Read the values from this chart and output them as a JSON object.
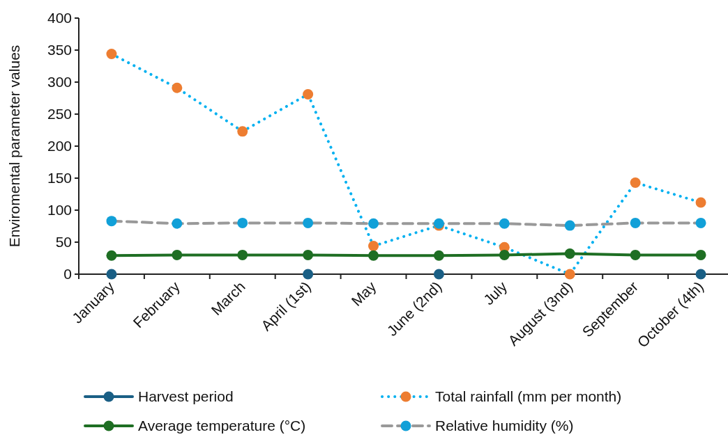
{
  "chart_data": {
    "type": "line",
    "ylabel": "Enviromental parameter values",
    "categories": [
      "January",
      "February",
      "March",
      "April (1st)",
      "May",
      "June (2nd)",
      "July",
      "August (3nd)",
      "September",
      "October (4th)"
    ],
    "series": [
      {
        "name": "Harvest period",
        "type": "scatter",
        "color": "#1a5f85",
        "values": [
          0,
          null,
          null,
          0,
          null,
          0,
          null,
          null,
          null,
          0
        ]
      },
      {
        "name": "Total rainfall (mm per month)",
        "color": "#00b0f0",
        "colors": [
          "#ed7d31",
          "#ed7d31",
          "#ed7d31",
          "#ed7d31",
          "#ed7d31",
          "#ed7d31",
          "#ed7d31",
          "#ed7d31",
          "#ed7d31",
          "#ed7d31"
        ],
        "line_style": "dotted",
        "values": [
          344,
          291,
          223,
          281,
          44,
          76,
          42,
          0,
          143,
          112
        ]
      },
      {
        "name": "Average temperature (°C)",
        "color": "#1e6e23",
        "line_style": "solid",
        "values": [
          29,
          30,
          30,
          30,
          29,
          29,
          30,
          32,
          30,
          30
        ]
      },
      {
        "name": "Relative humidity (%)",
        "color": "#999999",
        "colors": [
          "#11a0d8",
          "#11a0d8",
          "#11a0d8",
          "#11a0d8",
          "#11a0d8",
          "#11a0d8",
          "#11a0d8",
          "#11a0d8",
          "#11a0d8",
          "#11a0d8"
        ],
        "line_style": "dashed",
        "values": [
          83,
          79,
          80,
          80,
          79,
          79,
          79,
          76,
          80,
          80
        ]
      }
    ],
    "ylim": [
      0,
      400
    ],
    "yticks": [
      0,
      50,
      100,
      150,
      200,
      250,
      300,
      350,
      400
    ],
    "grid": false,
    "legend": "bottom",
    "marker": "circle"
  }
}
